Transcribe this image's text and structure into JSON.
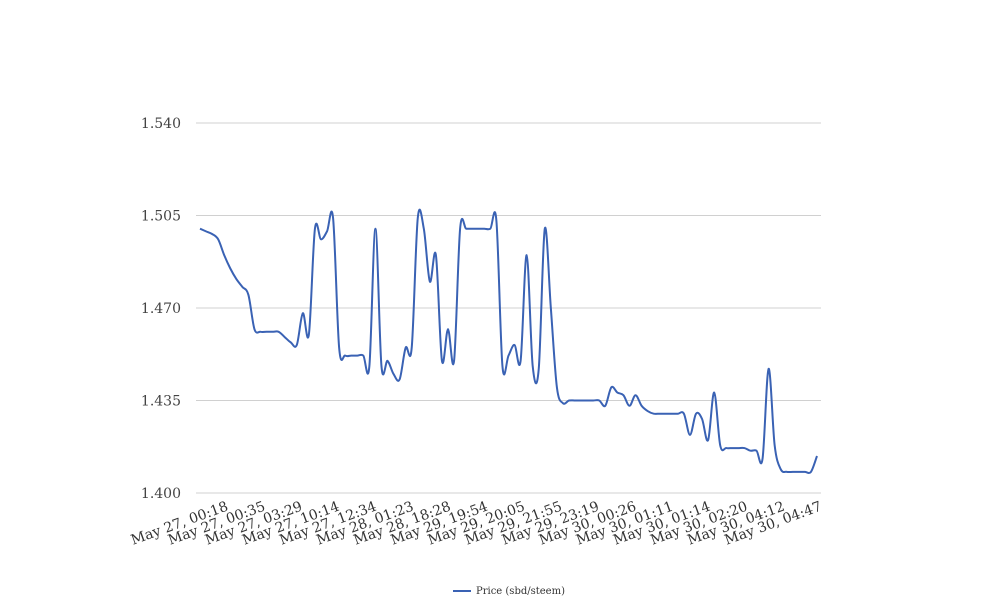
{
  "chart_data": {
    "type": "line",
    "title": "",
    "xlabel": "",
    "ylabel": "",
    "ylim": [
      1.4,
      1.54
    ],
    "y_ticks": [
      "1.400",
      "1.435",
      "1.470",
      "1.505",
      "1.540"
    ],
    "y_tick_values": [
      1.4,
      1.435,
      1.47,
      1.505,
      1.54
    ],
    "x_tick_labels": [
      "May 27, 00:18",
      "May 27, 00:35",
      "May 27, 03:29",
      "May 27, 10:14",
      "May 27, 12:34",
      "May 28, 01:23",
      "May 28, 18:28",
      "May 29, 19:54",
      "May 29, 20:05",
      "May 29, 21:55",
      "May 29, 23:19",
      "May 30, 00:26",
      "May 30, 01:11",
      "May 30, 01:14",
      "May 30, 02:20",
      "May 30, 04:12",
      "May 30, 04:47"
    ],
    "grid": true,
    "legend_position": "bottom-center",
    "color": "#3a62b4",
    "series": [
      {
        "name": "Price (sbd/steem)",
        "values": [
          1.5,
          1.499,
          1.498,
          1.496,
          1.49,
          1.485,
          1.481,
          1.478,
          1.475,
          1.462,
          1.461,
          1.461,
          1.461,
          1.461,
          1.459,
          1.457,
          1.456,
          1.468,
          1.46,
          1.5,
          1.496,
          1.499,
          1.504,
          1.455,
          1.452,
          1.452,
          1.452,
          1.452,
          1.448,
          1.5,
          1.448,
          1.45,
          1.445,
          1.443,
          1.455,
          1.455,
          1.504,
          1.5,
          1.48,
          1.49,
          1.45,
          1.462,
          1.45,
          1.5,
          1.5,
          1.5,
          1.5,
          1.5,
          1.5,
          1.503,
          1.448,
          1.452,
          1.456,
          1.45,
          1.49,
          1.448,
          1.447,
          1.5,
          1.47,
          1.44,
          1.434,
          1.435,
          1.435,
          1.435,
          1.435,
          1.435,
          1.435,
          1.433,
          1.44,
          1.438,
          1.437,
          1.433,
          1.437,
          1.433,
          1.431,
          1.43,
          1.43,
          1.43,
          1.43,
          1.43,
          1.43,
          1.422,
          1.43,
          1.428,
          1.42,
          1.438,
          1.418,
          1.417,
          1.417,
          1.417,
          1.417,
          1.416,
          1.416,
          1.413,
          1.447,
          1.418,
          1.409,
          1.408,
          1.408,
          1.408,
          1.408,
          1.408,
          1.414
        ]
      }
    ]
  }
}
